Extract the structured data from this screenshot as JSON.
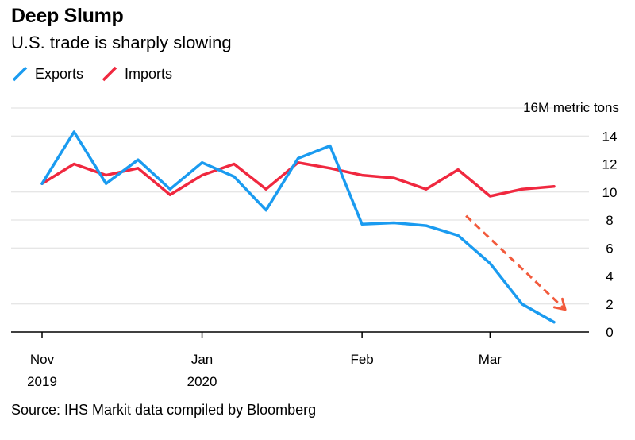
{
  "title": "Deep Slump",
  "subtitle": "U.S. trade is sharply slowing",
  "source": "Source: IHS Markit data compiled by Bloomberg",
  "legend": [
    {
      "name": "Exports",
      "color": "#1a9bf0"
    },
    {
      "name": "Imports",
      "color": "#f0283f"
    }
  ],
  "colors": {
    "exports": "#1a9bf0",
    "imports": "#f0283f",
    "arrow": "#f25a3c",
    "grid": "#dddddd"
  },
  "chart_data": {
    "type": "line",
    "unit_label": "16M metric tons",
    "ylim": [
      0,
      16
    ],
    "y_ticks": [
      0,
      2,
      4,
      6,
      8,
      10,
      12,
      14
    ],
    "grid": true,
    "legend_position": "top-left",
    "x_tick_labels": [
      {
        "label": "Nov",
        "year": "2019"
      },
      {
        "label": "Jan",
        "year": "2020"
      },
      {
        "label": "Feb",
        "year": ""
      },
      {
        "label": "Mar",
        "year": ""
      }
    ],
    "x_tick_points": [
      0,
      10,
      20,
      28
    ],
    "series": [
      {
        "name": "Exports",
        "color": "#1a9bf0",
        "values": [
          10.6,
          14.3,
          10.6,
          12.3,
          10.2,
          12.1,
          11.1,
          8.7,
          12.4,
          13.3,
          7.7,
          7.8,
          7.6,
          6.9,
          4.9,
          2.0,
          0.7
        ],
        "x": [
          0,
          2,
          4,
          6,
          8,
          10,
          12,
          14,
          16,
          18,
          20,
          22,
          24,
          26,
          28,
          30,
          32
        ]
      },
      {
        "name": "Imports",
        "color": "#f0283f",
        "values": [
          10.6,
          12.0,
          11.2,
          11.7,
          9.8,
          11.2,
          12.0,
          10.2,
          12.1,
          11.7,
          11.2,
          11.0,
          10.2,
          11.6,
          9.7,
          10.2,
          10.4
        ],
        "x": [
          0,
          2,
          4,
          6,
          8,
          10,
          12,
          14,
          16,
          18,
          20,
          22,
          24,
          26,
          28,
          30,
          32
        ]
      }
    ],
    "annotations": [
      {
        "type": "dashed-arrow",
        "from": {
          "x": 26.5,
          "y": 8.3
        },
        "to": {
          "x": 32.7,
          "y": 1.6
        }
      }
    ]
  }
}
